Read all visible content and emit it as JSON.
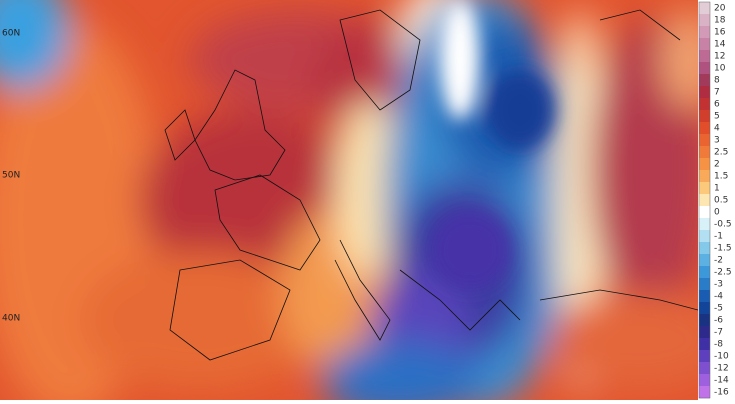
{
  "map": {
    "lat_labels": [
      "60N",
      "50N",
      "40N"
    ],
    "colorbar": {
      "ticks": [
        20,
        18,
        16,
        14,
        12,
        10,
        8,
        7,
        6,
        5,
        4,
        3,
        2.5,
        2,
        1.5,
        1,
        0.5,
        0,
        -0.5,
        -1,
        -1.5,
        -2,
        -2.5,
        -3,
        -4,
        -5,
        -6,
        -7,
        -8,
        -10,
        -12,
        -14,
        -16
      ],
      "colors": [
        "#e2ccd6",
        "#dab2c6",
        "#d29ab6",
        "#c882a6",
        "#bd6a94",
        "#b05280",
        "#a23a5c",
        "#b02c40",
        "#c23232",
        "#d23e2c",
        "#e24e2a",
        "#ea6432",
        "#f07a3a",
        "#f59244",
        "#f8aa5a",
        "#fcc87a",
        "#fee6b2",
        "#ffffff",
        "#d8f0f8",
        "#b2e0f2",
        "#84c8ea",
        "#5cb0e2",
        "#3c98d8",
        "#2a7cc8",
        "#1a5cb2",
        "#12449a",
        "#1a3282",
        "#2e2a8c",
        "#4030a6",
        "#5e40be",
        "#7e50d0",
        "#9e60de",
        "#c072e8"
      ]
    }
  }
}
